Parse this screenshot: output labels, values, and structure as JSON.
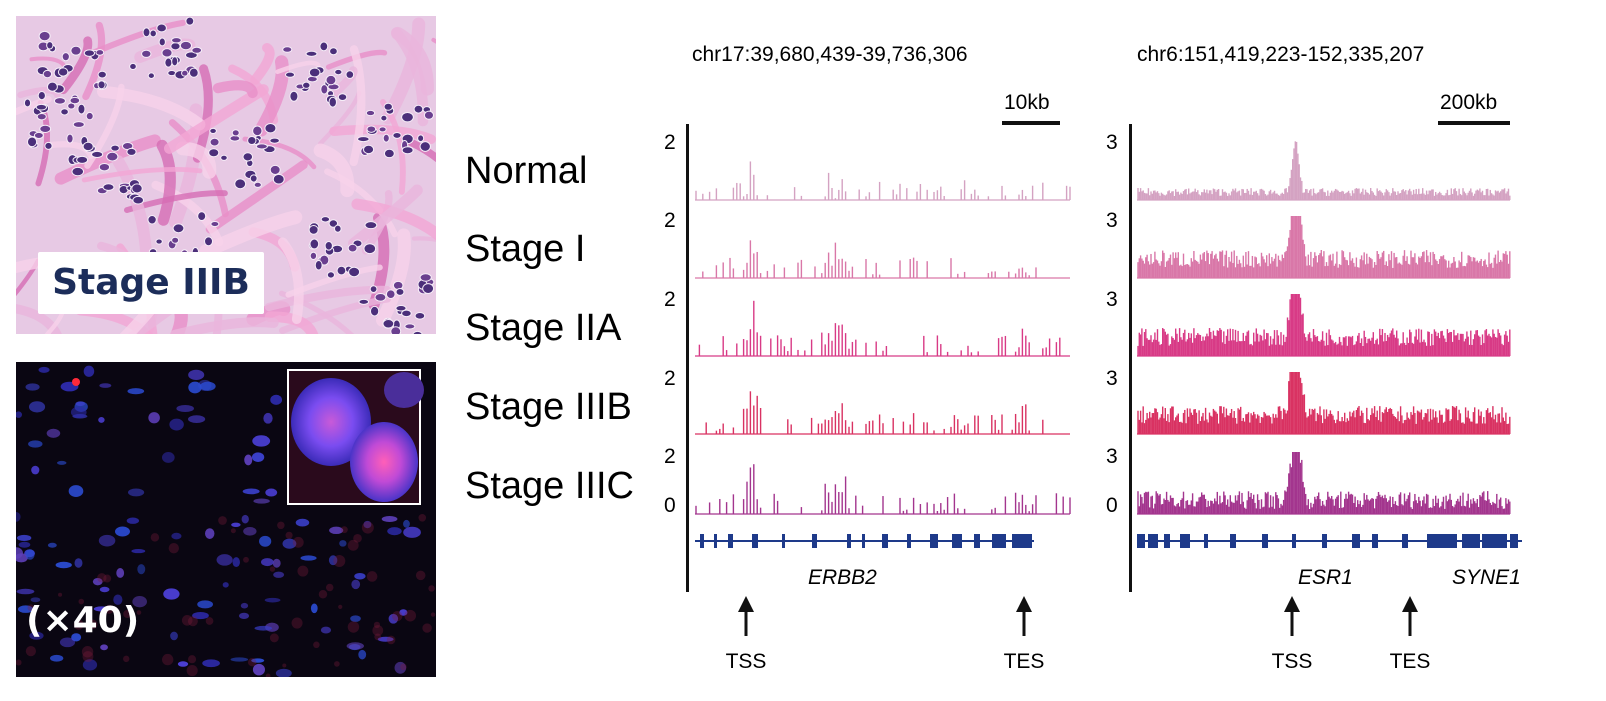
{
  "panels": {
    "he": {
      "label": "Stage IIIB"
    },
    "fluorescence": {
      "label": "(×40)"
    }
  },
  "tracks": {
    "samples": [
      "Normal",
      "Stage I",
      "Stage IIA",
      "Stage IIIB",
      "Stage IIIC"
    ],
    "regions": [
      {
        "locus": "chr17:39,680,439-39,736,306",
        "scale": "10kb",
        "ymax": "2",
        "ymin": "0",
        "gene": "ERBB2",
        "gene2": "",
        "tss": "TSS",
        "tes": "TES"
      },
      {
        "locus": "chr6:151,419,223-152,335,207",
        "scale": "200kb",
        "ymax": "3",
        "ymin": "0",
        "gene": "ESR1",
        "gene2": "SYNE1",
        "tss": "TSS",
        "tes": "TES"
      }
    ],
    "track_colors": [
      "#d4a2c2",
      "#d977a8",
      "#d83a86",
      "#d93262",
      "#a3358e"
    ],
    "gene_color": "#1e3a8a"
  }
}
